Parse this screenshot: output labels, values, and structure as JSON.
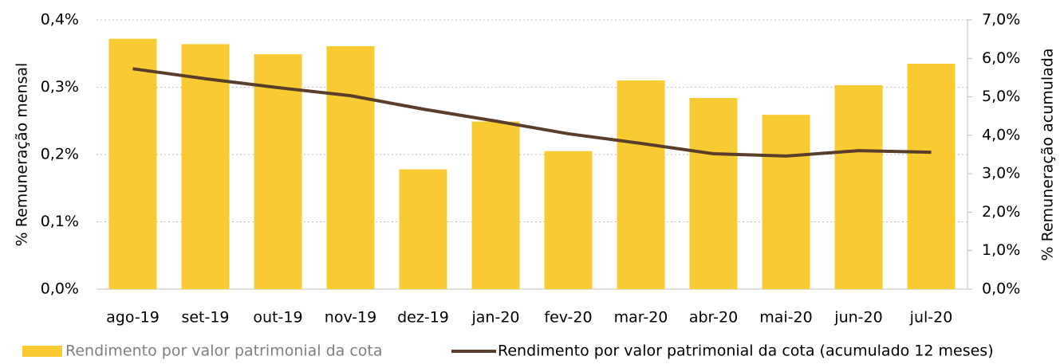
{
  "chart_data": {
    "type": "bar",
    "categories": [
      "ago-19",
      "set-19",
      "out-19",
      "nov-19",
      "dez-19",
      "jan-20",
      "fev-20",
      "mar-20",
      "abr-20",
      "mai-20",
      "jun-20",
      "jul-20"
    ],
    "series": [
      {
        "name": "Rendimento por valor patrimonial da cota",
        "type": "bar",
        "color": "#f9cb33",
        "values": [
          0.372,
          0.364,
          0.349,
          0.361,
          0.178,
          0.249,
          0.205,
          0.31,
          0.284,
          0.259,
          0.303,
          0.335
        ]
      },
      {
        "name": "Rendimento por valor patrimonial da cota (acumulado 12 meses)",
        "type": "line",
        "axis": "y2",
        "color": "#5a3e2b",
        "values": [
          5.73,
          5.47,
          5.24,
          5.03,
          4.68,
          4.37,
          4.04,
          3.79,
          3.52,
          3.46,
          3.6,
          3.56
        ]
      }
    ],
    "ylabel": "% Remuneração mensal",
    "y2label": "% Remuneração acumulada",
    "ylim": [
      0,
      0.4
    ],
    "yticks": [
      {
        "value": 0,
        "label": "0,0%"
      },
      {
        "value": 0.1,
        "label": "0,1%"
      },
      {
        "value": 0.2,
        "label": "0,2%"
      },
      {
        "value": 0.3,
        "label": "0,3%"
      },
      {
        "value": 0.4,
        "label": "0,4%"
      }
    ],
    "y2lim": [
      0,
      7
    ],
    "y2ticks": [
      {
        "value": 0,
        "label": "0,0%"
      },
      {
        "value": 1,
        "label": "1,0%"
      },
      {
        "value": 2,
        "label": "2,0%"
      },
      {
        "value": 3,
        "label": "3,0%"
      },
      {
        "value": 4,
        "label": "4,0%"
      },
      {
        "value": 5,
        "label": "5,0%"
      },
      {
        "value": 6,
        "label": "6,0%"
      },
      {
        "value": 7,
        "label": "7,0%"
      }
    ],
    "grid": true,
    "legend": "bottom"
  }
}
